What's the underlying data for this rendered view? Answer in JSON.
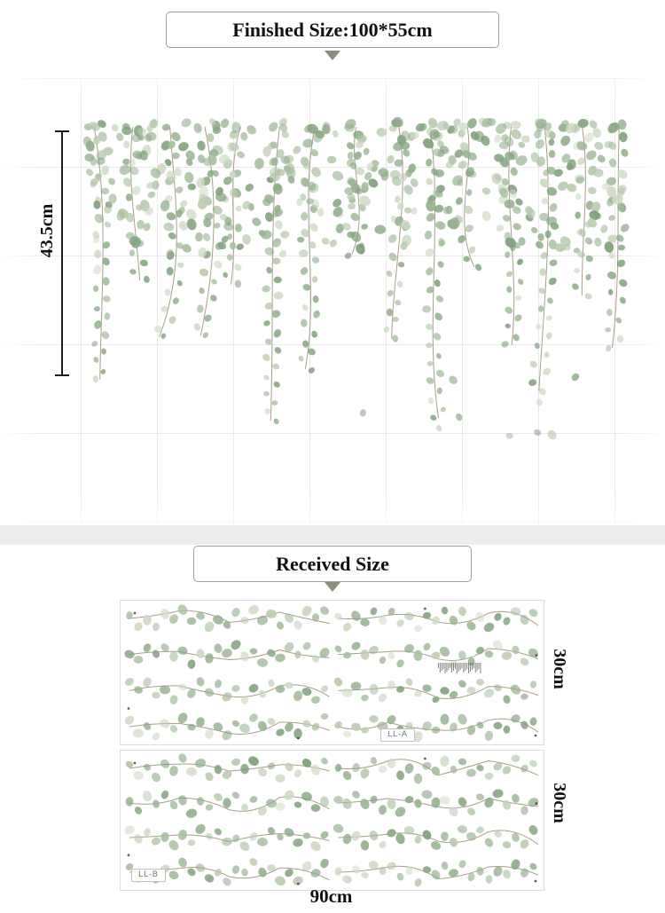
{
  "finished_section": {
    "title": "Finished Size:100*55cm",
    "height_label": "43.5cm"
  },
  "received_section": {
    "title": "Received Size",
    "width_label": "90cm",
    "sheets": [
      {
        "label": "LL-A",
        "height_label": "30cm"
      },
      {
        "label": "LL-B",
        "height_label": "30cm"
      }
    ]
  },
  "art": {
    "leaf_colors": [
      "#a9bfa0",
      "#8fab88",
      "#bccbaf",
      "#7fa07a",
      "#cdd9c2",
      "#98b290",
      "#86a583"
    ],
    "stem_color": "#9b8d74",
    "grid_color": "#eaeaea",
    "arrow_color": "#8d8d7b",
    "dot_color": "#3a3a3a",
    "text_color": "#111111",
    "hanging_strand_count": 15,
    "sheet_row_count": 4,
    "sheet_column_count": 2
  }
}
